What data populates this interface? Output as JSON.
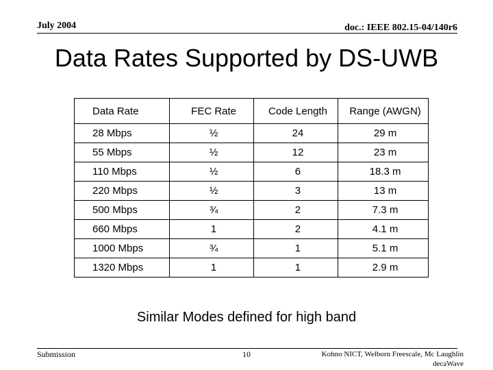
{
  "header": {
    "date": "July 2004",
    "doc_id": "doc.: IEEE 802.15-04/140r6"
  },
  "title": "Data Rates Supported by DS-UWB",
  "table": {
    "columns": [
      "Data Rate",
      "FEC Rate",
      "Code Length",
      "Range (AWGN)"
    ],
    "rows": [
      [
        "28 Mbps",
        "½",
        "24",
        "29 m"
      ],
      [
        "55 Mbps",
        "½",
        "12",
        "23 m"
      ],
      [
        "110 Mbps",
        "½",
        "6",
        "18.3 m"
      ],
      [
        "220 Mbps",
        "½",
        "3",
        "13 m"
      ],
      [
        "500 Mbps",
        "¾",
        "2",
        "7.3 m"
      ],
      [
        "660 Mbps",
        "1",
        "2",
        "4.1 m"
      ],
      [
        "1000 Mbps",
        "¾",
        "1",
        "5.1 m"
      ],
      [
        "1320 Mbps",
        "1",
        "1",
        "2.9 m"
      ]
    ]
  },
  "note": "Similar Modes defined for high band",
  "footer": {
    "left": "Submission",
    "page": "10",
    "authors_line1": "Kohno NICT, Welborn Freescale, Mc Laughlin",
    "authors_line2": "decaWave"
  }
}
